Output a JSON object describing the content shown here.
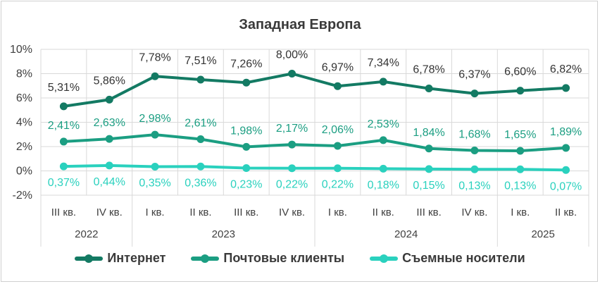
{
  "chart_data": {
    "type": "line",
    "title": "Западная Европа",
    "xlabel": "",
    "ylabel": "",
    "ylim": [
      -2,
      10
    ],
    "yticks": [
      "10%",
      "8%",
      "6%",
      "4%",
      "2%",
      "0%",
      "-2%"
    ],
    "ytick_values": [
      10,
      8,
      6,
      4,
      2,
      0,
      -2
    ],
    "categories": [
      "III кв.",
      "IV кв.",
      "I кв.",
      "II кв.",
      "III кв.",
      "IV кв.",
      "I кв.",
      "II кв.",
      "III кв.",
      "IV кв.",
      "I кв.",
      "II кв."
    ],
    "years": [
      {
        "label": "2022",
        "start": 0,
        "end": 1
      },
      {
        "label": "2023",
        "start": 2,
        "end": 5
      },
      {
        "label": "2024",
        "start": 6,
        "end": 9
      },
      {
        "label": "2025",
        "start": 10,
        "end": 11
      }
    ],
    "grid": true,
    "legend_position": "bottom",
    "series": [
      {
        "name": "Интернет",
        "color": "#137a63",
        "values": [
          5.31,
          5.86,
          7.78,
          7.51,
          7.26,
          8.0,
          6.97,
          7.34,
          6.78,
          6.37,
          6.6,
          6.82
        ],
        "labels": [
          "5,31%",
          "5,86%",
          "7,78%",
          "7,51%",
          "7,26%",
          "8,00%",
          "6,97%",
          "7,34%",
          "6,78%",
          "6,37%",
          "6,60%",
          "6,82%"
        ]
      },
      {
        "name": "Почтовые клиенты",
        "color": "#1b9e82",
        "values": [
          2.41,
          2.63,
          2.98,
          2.61,
          1.98,
          2.17,
          2.06,
          2.53,
          1.84,
          1.68,
          1.65,
          1.89
        ],
        "labels": [
          "2,41%",
          "2,63%",
          "2,98%",
          "2,61%",
          "1,98%",
          "2,17%",
          "2,06%",
          "2,53%",
          "1,84%",
          "1,68%",
          "1,65%",
          "1,89%"
        ]
      },
      {
        "name": "Съемные носители",
        "color": "#2ad1be",
        "values": [
          0.37,
          0.44,
          0.35,
          0.36,
          0.23,
          0.22,
          0.22,
          0.18,
          0.15,
          0.13,
          0.13,
          0.07
        ],
        "labels": [
          "0,37%",
          "0,44%",
          "0,35%",
          "0,36%",
          "0,23%",
          "0,22%",
          "0,22%",
          "0,18%",
          "0,15%",
          "0,13%",
          "0,13%",
          "0,07%"
        ]
      }
    ]
  }
}
